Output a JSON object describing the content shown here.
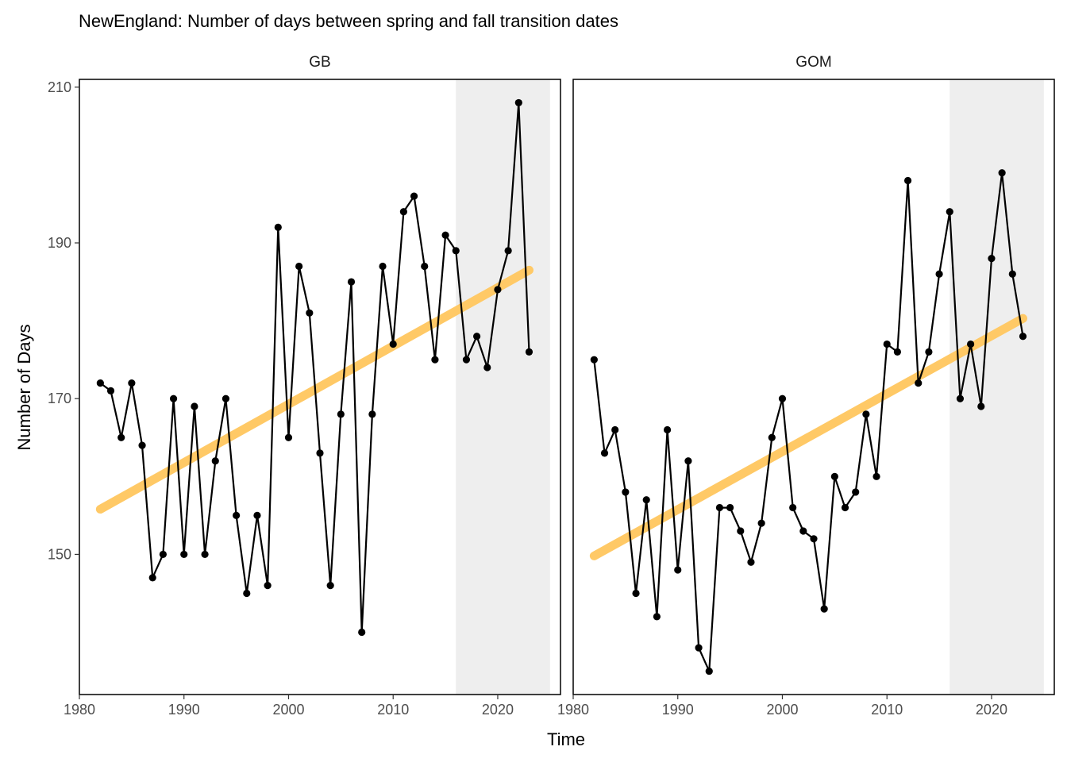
{
  "title": "NewEngland: Number of days between spring and fall transition dates",
  "chart_data": {
    "type": "line",
    "title": "NewEngland: Number of days between spring and fall transition dates",
    "xlabel": "Time",
    "ylabel": "Number of Days",
    "xlim": [
      1980,
      2026
    ],
    "ylim": [
      132,
      211
    ],
    "x_ticks": [
      1980,
      1990,
      2000,
      2010,
      2020
    ],
    "y_ticks": [
      150,
      170,
      190,
      210
    ],
    "grid": false,
    "shaded_period": [
      2016,
      2025
    ],
    "colors": {
      "series": "#000000",
      "trend": "#ffc966",
      "shade": "#eeeeee"
    },
    "panels": [
      {
        "name": "GB",
        "x": [
          1982,
          1983,
          1984,
          1985,
          1986,
          1987,
          1988,
          1989,
          1990,
          1991,
          1992,
          1993,
          1994,
          1995,
          1996,
          1997,
          1998,
          1999,
          2000,
          2001,
          2002,
          2003,
          2004,
          2005,
          2006,
          2007,
          2008,
          2009,
          2010,
          2011,
          2012,
          2013,
          2014,
          2015,
          2016,
          2017,
          2018,
          2019,
          2020,
          2021,
          2022,
          2023
        ],
        "y": [
          172,
          171,
          165,
          172,
          164,
          147,
          150,
          170,
          150,
          169,
          150,
          162,
          170,
          155,
          145,
          155,
          146,
          192,
          165,
          187,
          181,
          163,
          146,
          168,
          185,
          140,
          168,
          187,
          177,
          194,
          196,
          187,
          175,
          191,
          189,
          175,
          178,
          174,
          184,
          189,
          208,
          176
        ],
        "trend": {
          "x": [
            1982,
            2023
          ],
          "y": [
            155.8,
            186.5
          ]
        }
      },
      {
        "name": "GOM",
        "x": [
          1982,
          1983,
          1984,
          1985,
          1986,
          1987,
          1988,
          1989,
          1990,
          1991,
          1992,
          1993,
          1994,
          1995,
          1996,
          1997,
          1998,
          1999,
          2000,
          2001,
          2002,
          2003,
          2004,
          2005,
          2006,
          2007,
          2008,
          2009,
          2010,
          2011,
          2012,
          2013,
          2014,
          2015,
          2016,
          2017,
          2018,
          2019,
          2020,
          2021,
          2022,
          2023
        ],
        "y": [
          175,
          163,
          166,
          158,
          145,
          157,
          142,
          166,
          148,
          162,
          138,
          135,
          156,
          156,
          153,
          149,
          154,
          165,
          170,
          156,
          153,
          152,
          143,
          160,
          156,
          158,
          168,
          160,
          177,
          176,
          198,
          172,
          176,
          186,
          194,
          170,
          177,
          169,
          188,
          199,
          186,
          178
        ],
        "trend": {
          "x": [
            1982,
            2023
          ],
          "y": [
            149.8,
            180.3
          ]
        }
      }
    ]
  }
}
